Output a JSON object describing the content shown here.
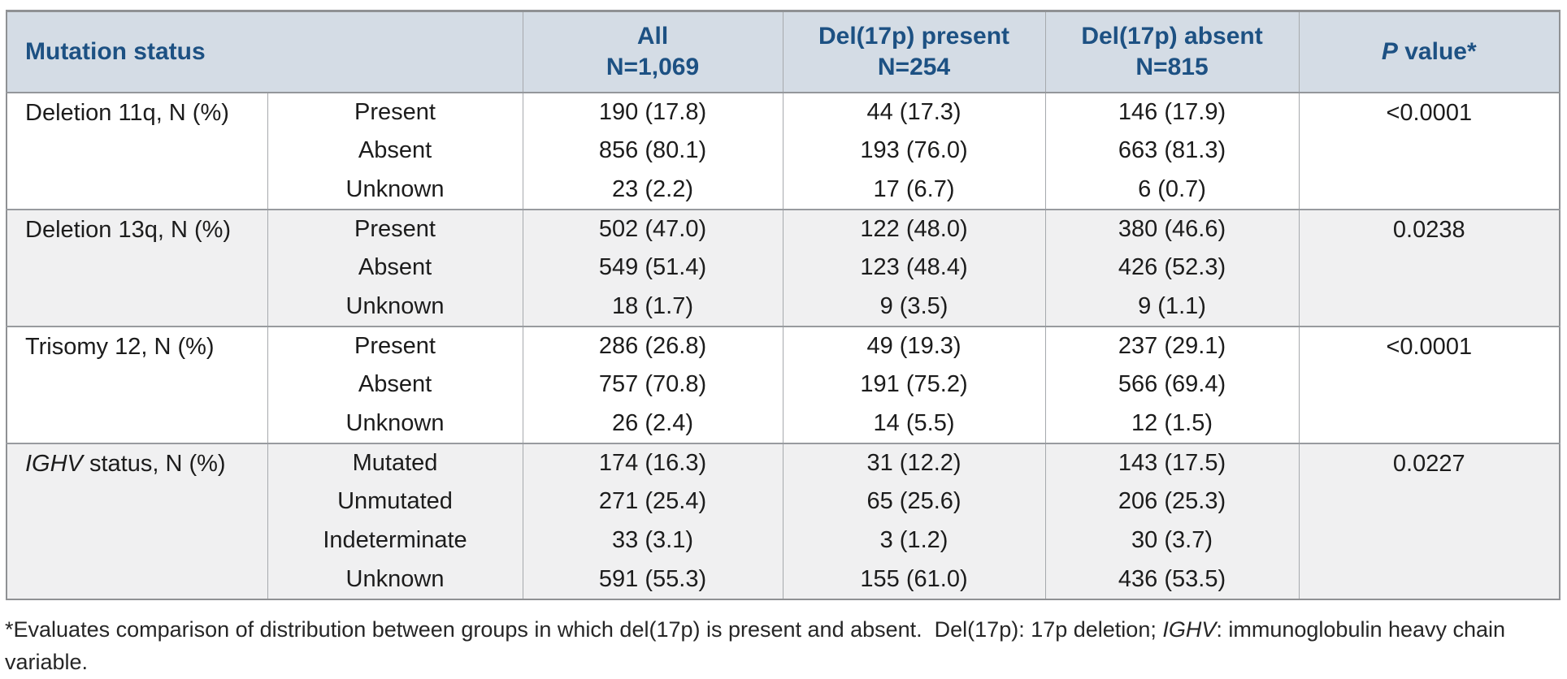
{
  "colors": {
    "header_bg": "#d4dce5",
    "header_text": "#1d5183",
    "border_outer": "#8f9194",
    "border_inner": "#a6a9ad",
    "group_stripe": "#f0f0f1",
    "body_text": "#1c1c1c"
  },
  "table": {
    "header": {
      "col1": "Mutation status",
      "columns": [
        {
          "label": "All",
          "n": "N=1,069"
        },
        {
          "label": "Del(17p) present",
          "n": "N=254"
        },
        {
          "label": "Del(17p) absent",
          "n": "N=815"
        },
        {
          "label_italic": "P",
          "label_rest": " value*"
        }
      ]
    },
    "groups": [
      {
        "label_italic": "",
        "label": "Deletion 11q, N (%)",
        "p_value": "<0.0001",
        "rows": [
          {
            "status": "Present",
            "all": "190 (17.8)",
            "present": "44 (17.3)",
            "absent": "146 (17.9)"
          },
          {
            "status": "Absent",
            "all": "856 (80.1)",
            "present": "193 (76.0)",
            "absent": "663 (81.3)"
          },
          {
            "status": "Unknown",
            "all": "23 (2.2)",
            "present": "17 (6.7)",
            "absent": "6 (0.7)"
          }
        ]
      },
      {
        "label_italic": "",
        "label": "Deletion 13q, N (%)",
        "p_value": "0.0238",
        "rows": [
          {
            "status": "Present",
            "all": "502 (47.0)",
            "present": "122 (48.0)",
            "absent": "380 (46.6)"
          },
          {
            "status": "Absent",
            "all": "549 (51.4)",
            "present": "123 (48.4)",
            "absent": "426 (52.3)"
          },
          {
            "status": "Unknown",
            "all": "18 (1.7)",
            "present": "9 (3.5)",
            "absent": "9 (1.1)"
          }
        ]
      },
      {
        "label_italic": "",
        "label": "Trisomy 12, N (%)",
        "p_value": "<0.0001",
        "rows": [
          {
            "status": "Present",
            "all": "286 (26.8)",
            "present": "49 (19.3)",
            "absent": "237 (29.1)"
          },
          {
            "status": "Absent",
            "all": "757 (70.8)",
            "present": "191 (75.2)",
            "absent": "566 (69.4)"
          },
          {
            "status": "Unknown",
            "all": "26 (2.4)",
            "present": "14 (5.5)",
            "absent": "12 (1.5)"
          }
        ]
      },
      {
        "label_italic": "IGHV",
        "label": " status, N (%)",
        "p_value": "0.0227",
        "rows": [
          {
            "status": "Mutated",
            "all": "174 (16.3)",
            "present": "31 (12.2)",
            "absent": "143 (17.5)"
          },
          {
            "status": "Unmutated",
            "all": "271 (25.4)",
            "present": "65 (25.6)",
            "absent": "206 (25.3)"
          },
          {
            "status": "Indeterminate",
            "all": "33 (3.1)",
            "present": "3 (1.2)",
            "absent": "30 (3.7)"
          },
          {
            "status": "Unknown",
            "all": "591 (55.3)",
            "present": "155 (61.0)",
            "absent": "436 (53.5)"
          }
        ]
      }
    ]
  },
  "footnote": {
    "pre_italic": "*Evaluates comparison of distribution between groups in which del(17p) is present and absent.  Del(17p): 17p deletion; ",
    "italic": "IGHV",
    "post_italic": ": immunoglobulin heavy chain variable."
  }
}
